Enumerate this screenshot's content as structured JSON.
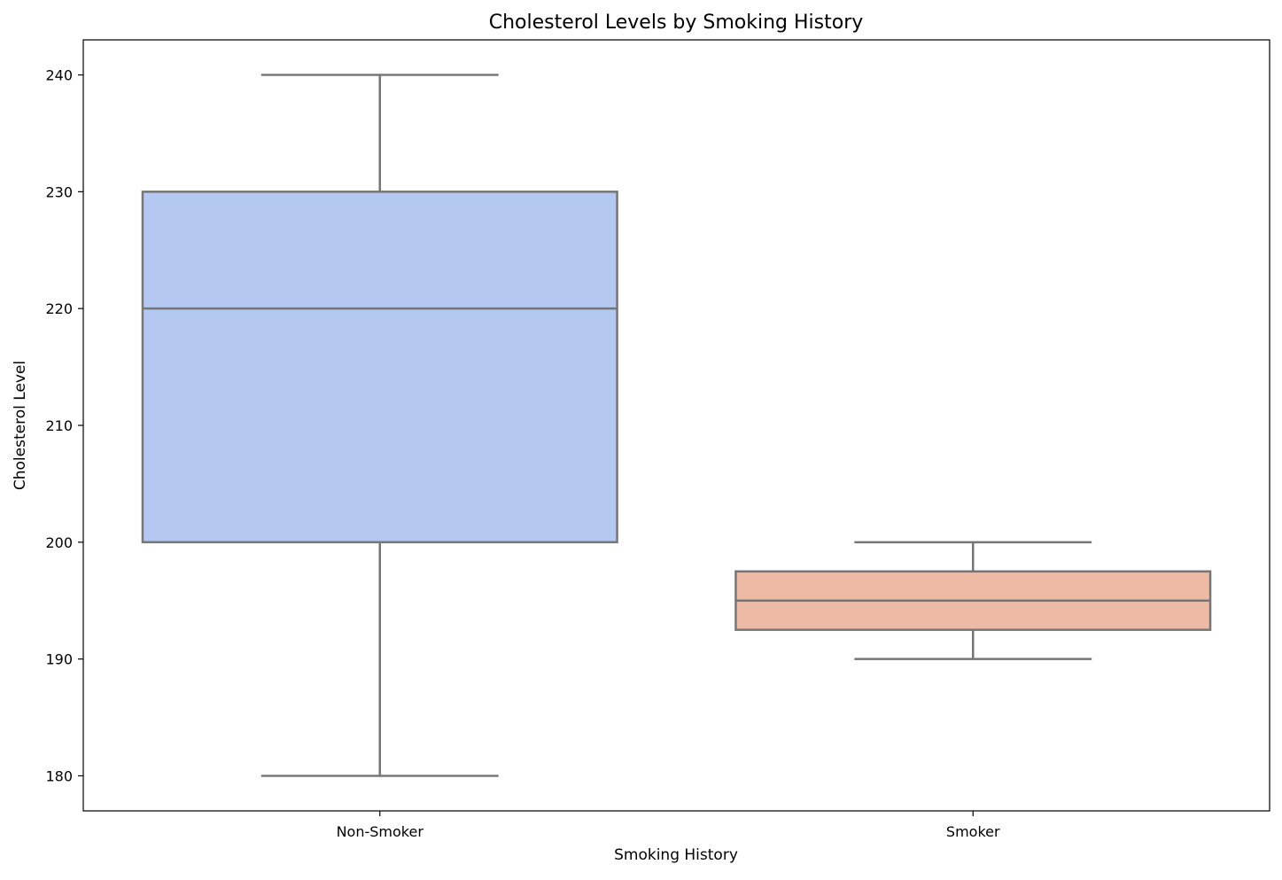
{
  "chart_data": {
    "type": "box",
    "title": "Cholesterol Levels by Smoking History",
    "xlabel": "Smoking History",
    "ylabel": "Cholesterol Level",
    "categories": [
      "Non-Smoker",
      "Smoker"
    ],
    "ylim": [
      177,
      243
    ],
    "yticks": [
      180,
      190,
      200,
      210,
      220,
      230,
      240
    ],
    "grid": false,
    "boxes": [
      {
        "category": "Non-Smoker",
        "whisker_low": 180,
        "q1": 200,
        "median": 220,
        "q3": 230,
        "whisker_high": 240,
        "color": "#b4c8f2"
      },
      {
        "category": "Smoker",
        "whisker_low": 190,
        "q1": 192.5,
        "median": 195,
        "q3": 197.5,
        "whisker_high": 200,
        "color": "#ecbaa5"
      }
    ],
    "line_color": "#767676"
  }
}
